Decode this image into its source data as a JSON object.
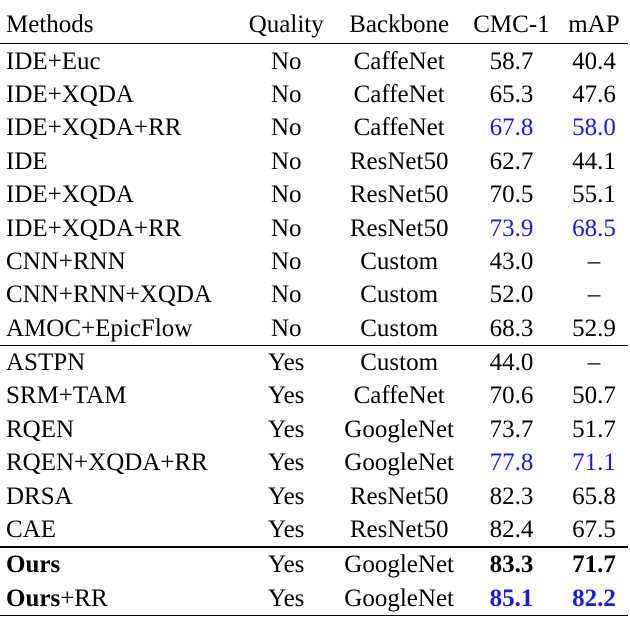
{
  "table": {
    "headers": [
      "Methods",
      "Quality",
      "Backbone",
      "CMC-1",
      "mAP"
    ],
    "colors": {
      "highlight": "#1a1adf",
      "text": "#000000"
    },
    "rows": [
      {
        "method": "IDE+Euc",
        "quality": "No",
        "backbone": "CaffeNet",
        "cmc1": "58.7",
        "map": "40.4"
      },
      {
        "method": "IDE+XQDA",
        "quality": "No",
        "backbone": "CaffeNet",
        "cmc1": "65.3",
        "map": "47.6"
      },
      {
        "method": "IDE+XQDA+RR",
        "quality": "No",
        "backbone": "CaffeNet",
        "cmc1": "67.8",
        "map": "58.0"
      },
      {
        "method": "IDE",
        "quality": "No",
        "backbone": "ResNet50",
        "cmc1": "62.7",
        "map": "44.1"
      },
      {
        "method": "IDE+XQDA",
        "quality": "No",
        "backbone": "ResNet50",
        "cmc1": "70.5",
        "map": "55.1"
      },
      {
        "method": "IDE+XQDA+RR",
        "quality": "No",
        "backbone": "ResNet50",
        "cmc1": "73.9",
        "map": "68.5"
      },
      {
        "method": "CNN+RNN",
        "quality": "No",
        "backbone": "Custom",
        "cmc1": "43.0",
        "map": "–"
      },
      {
        "method": "CNN+RNN+XQDA",
        "quality": "No",
        "backbone": "Custom",
        "cmc1": "52.0",
        "map": "–"
      },
      {
        "method": "AMOC+EpicFlow",
        "quality": "No",
        "backbone": "Custom",
        "cmc1": "68.3",
        "map": "52.9"
      },
      {
        "method": "ASTPN",
        "quality": "Yes",
        "backbone": "Custom",
        "cmc1": "44.0",
        "map": "–"
      },
      {
        "method": "SRM+TAM",
        "quality": "Yes",
        "backbone": "CaffeNet",
        "cmc1": "70.6",
        "map": "50.7"
      },
      {
        "method": "RQEN",
        "quality": "Yes",
        "backbone": "GoogleNet",
        "cmc1": "73.7",
        "map": "51.7"
      },
      {
        "method": "RQEN+XQDA+RR",
        "quality": "Yes",
        "backbone": "GoogleNet",
        "cmc1": "77.8",
        "map": "71.1"
      },
      {
        "method": "DRSA",
        "quality": "Yes",
        "backbone": "ResNet50",
        "cmc1": "82.3",
        "map": "65.8"
      },
      {
        "method": "CAE",
        "quality": "Yes",
        "backbone": "ResNet50",
        "cmc1": "82.4",
        "map": "67.5"
      },
      {
        "method_bold": "Ours",
        "method_rest": "",
        "quality": "Yes",
        "backbone": "GoogleNet",
        "cmc1": "83.3",
        "map": "71.7"
      },
      {
        "method_bold": "Ours",
        "method_rest": "+RR",
        "quality": "Yes",
        "backbone": "GoogleNet",
        "cmc1": "85.1",
        "map": "82.2"
      }
    ]
  }
}
